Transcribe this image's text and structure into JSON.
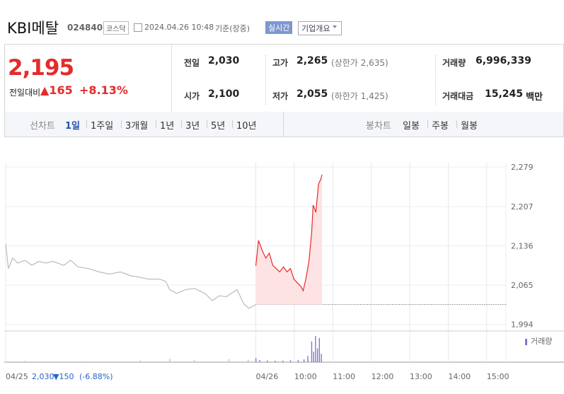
{
  "header": {
    "name": "KBI메탈",
    "code": "024840",
    "market": "코스닥",
    "datetime": "2024.04.26 10:48",
    "basis": "기준(장중)",
    "realtime": "실시간",
    "company_button": "기업개요"
  },
  "summary": {
    "price": "2,195",
    "change_label": "전일대비",
    "change": "▲165",
    "change_pct": "+8.13%",
    "items": [
      {
        "label": "전일",
        "value": "2,030"
      },
      {
        "label": "고가",
        "value": "2,265",
        "sub": "(상한가 2,635)"
      },
      {
        "label": "거래량",
        "value": "6,996,339"
      },
      {
        "label": "시가",
        "value": "2,100"
      },
      {
        "label": "저가",
        "value": "2,055",
        "sub": "(하한가 1,425)"
      },
      {
        "label": "거래대금",
        "value": "15,245",
        "unit": "백만"
      }
    ]
  },
  "tabs": {
    "line_label": "선차트",
    "line": [
      "1일",
      "1주일",
      "3개월",
      "1년",
      "3년",
      "5년",
      "10년"
    ],
    "candle_label": "봉차트",
    "candle": [
      "일봉",
      "주봉",
      "월봉"
    ]
  },
  "chart_data": {
    "type": "line",
    "xlim": [
      2.5,
      15.5
    ],
    "xticks": [
      {
        "value": 2.5,
        "label": "04/25"
      },
      {
        "value": 9,
        "label": "04/26"
      },
      {
        "value": 10,
        "label": "10:00"
      },
      {
        "value": 11,
        "label": "11:00"
      },
      {
        "value": 12,
        "label": "12:00"
      },
      {
        "value": 13,
        "label": "13:00"
      },
      {
        "value": 14,
        "label": "14:00"
      },
      {
        "value": 15,
        "label": "15:00"
      }
    ],
    "ylim": [
      1982,
      2325
    ],
    "yticks": [
      {
        "value": 2279,
        "label": "2,279"
      },
      {
        "value": 2207,
        "label": "2,207"
      },
      {
        "value": 2136,
        "label": "2,136"
      },
      {
        "value": 2065,
        "label": "2,065"
      },
      {
        "value": 1994,
        "label": "1,994"
      }
    ],
    "reference_line": 2030,
    "series": [
      {
        "color": "#bbbbbb",
        "x": [
          2.5,
          2.57,
          2.68,
          2.81,
          3.0,
          3.18,
          3.36,
          3.55,
          3.73,
          4.01,
          4.19,
          4.38,
          4.65,
          4.93,
          5.2,
          5.48,
          5.75,
          5.94,
          6.21,
          6.49,
          6.66,
          6.76,
          6.95,
          7.17,
          7.41,
          7.68,
          7.87,
          8.05,
          8.23,
          8.51,
          8.69,
          8.82,
          9.0
        ],
        "values": [
          2140,
          2095,
          2114,
          2105,
          2110,
          2101,
          2108,
          2105,
          2108,
          2101,
          2110,
          2098,
          2095,
          2089,
          2085,
          2089,
          2082,
          2080,
          2076,
          2076,
          2072,
          2057,
          2050,
          2057,
          2059,
          2050,
          2037,
          2046,
          2044,
          2057,
          2031,
          2023,
          2030
        ]
      },
      {
        "color": "#e52b2b",
        "fill": "#fde3e3",
        "x": [
          9.0,
          9.07,
          9.17,
          9.26,
          9.35,
          9.44,
          9.53,
          9.62,
          9.72,
          9.81,
          9.9,
          9.99,
          10.08,
          10.17,
          10.23,
          10.3,
          10.38,
          10.45,
          10.49,
          10.56,
          10.63,
          10.69,
          10.72
        ],
        "values": [
          2100,
          2146,
          2127,
          2114,
          2123,
          2101,
          2095,
          2089,
          2098,
          2089,
          2095,
          2076,
          2069,
          2063,
          2055,
          2076,
          2108,
          2159,
          2210,
          2197,
          2248,
          2257,
          2265
        ]
      }
    ],
    "volume": {
      "name": "거래량",
      "color": "#8a73c9",
      "prev_color": "#c4c4c4",
      "ylim": [
        0,
        400000
      ],
      "x": [
        3.0,
        4.5,
        6.0,
        6.76,
        7.4,
        8.3,
        8.8,
        9.0,
        9.1,
        9.3,
        9.5,
        9.7,
        9.9,
        10.1,
        10.25,
        10.35,
        10.45,
        10.5,
        10.55,
        10.6,
        10.65,
        10.7
      ],
      "values": [
        20000,
        15000,
        25000,
        50000,
        30000,
        45000,
        35000,
        60000,
        30000,
        25000,
        20000,
        22000,
        28000,
        30000,
        40000,
        90000,
        300000,
        150000,
        380000,
        200000,
        350000,
        120000
      ]
    },
    "prev_info": {
      "close": "2,030",
      "change": "▼150",
      "change_pct": "(-6.88%)"
    }
  }
}
